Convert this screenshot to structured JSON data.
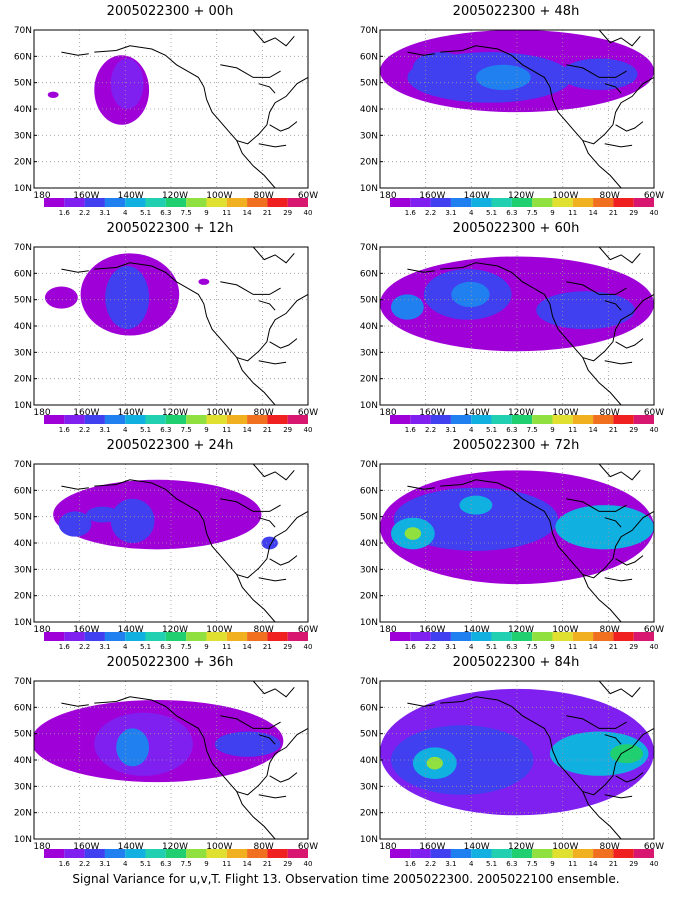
{
  "caption": "Signal Variance for u,v,T. Flight 13. Observation time 2005022300. 2005022100 ensemble.",
  "lat_labels": [
    "70N",
    "60N",
    "50N",
    "40N",
    "30N",
    "20N",
    "10N"
  ],
  "lon_labels": [
    "180",
    "160W",
    "140W",
    "120W",
    "100W",
    "80W",
    "60W"
  ],
  "colorbar": {
    "levels": [
      "1.6",
      "2.2",
      "3.1",
      "4",
      "5.1",
      "6.3",
      "7.5",
      "9",
      "11",
      "14",
      "21",
      "29",
      "40"
    ],
    "colors": [
      "#a000d8",
      "#8020f0",
      "#4040f0",
      "#2080f0",
      "#10b0e0",
      "#20d0b0",
      "#20d070",
      "#90e040",
      "#e0e030",
      "#f0b020",
      "#f07020",
      "#f02020",
      "#d81870"
    ]
  },
  "panels": [
    {
      "title": "2005022300 + 00h"
    },
    {
      "title": "2005022300 + 48h"
    },
    {
      "title": "2005022300 + 12h"
    },
    {
      "title": "2005022300 + 60h"
    },
    {
      "title": "2005022300 + 24h"
    },
    {
      "title": "2005022300 + 72h"
    },
    {
      "title": "2005022300 + 36h"
    },
    {
      "title": "2005022300 + 84h"
    }
  ]
}
